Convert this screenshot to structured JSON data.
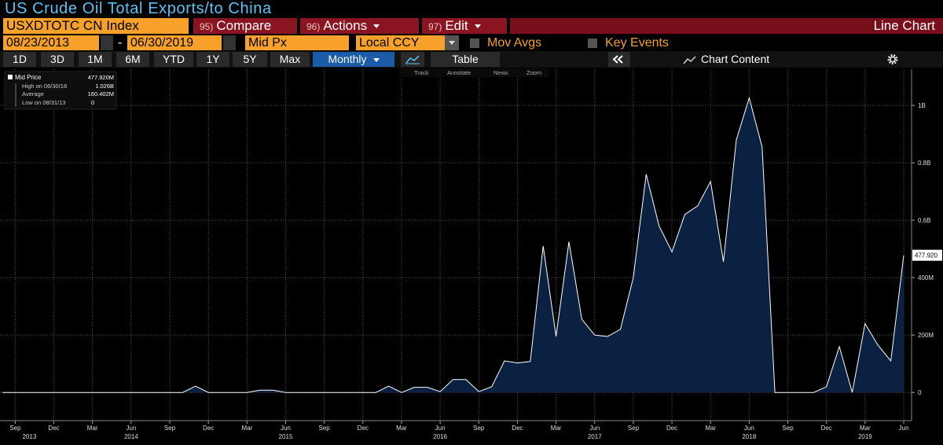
{
  "header": {
    "title": "US Crude Oil Total Exports/to China"
  },
  "toolbar": {
    "ticker": "USXDTOTC CN Index",
    "buttons": [
      {
        "num": "95)",
        "label": "Compare"
      },
      {
        "num": "96)",
        "label": "Actions"
      },
      {
        "num": "97)",
        "label": "Edit"
      }
    ],
    "chart_label": "Line Chart"
  },
  "settings": {
    "start_date": "08/23/2013",
    "date_separator": "-",
    "end_date": "06/30/2019",
    "field": "Mid Px",
    "currency": "Local CCY",
    "toggles": [
      "Mov Avgs",
      "Key Events"
    ]
  },
  "periods": {
    "options": [
      "1D",
      "3D",
      "1M",
      "6M",
      "YTD",
      "1Y",
      "5Y",
      "Max"
    ],
    "frequency": "Monthly",
    "table": "Table",
    "chart_content": "Chart Content"
  },
  "chart_data": {
    "type": "area",
    "series": [
      {
        "name": "Mid Price",
        "color": "#ffffff",
        "fill_color": "#0b2142",
        "values": [
          0,
          0,
          0,
          0,
          0,
          0,
          0,
          0,
          0,
          0,
          0,
          0,
          0,
          0,
          0,
          22,
          0,
          0,
          0,
          0,
          8,
          8,
          0,
          0,
          0,
          0,
          0,
          0,
          0,
          0,
          22,
          0,
          18,
          18,
          3,
          45,
          45,
          3,
          20,
          110,
          103,
          108,
          510,
          195,
          525,
          255,
          200,
          195,
          220,
          400,
          760,
          580,
          490,
          620,
          650,
          735,
          455,
          880,
          1026,
          855,
          0,
          0,
          0,
          0,
          20,
          160,
          0,
          240,
          165,
          110,
          477.92
        ],
        "value_labels": [
          null,
          null,
          null,
          null,
          null,
          null,
          null,
          null,
          null,
          null,
          null,
          null,
          null,
          null,
          null,
          null,
          null,
          null,
          null,
          null,
          null,
          null,
          null,
          null,
          null,
          null,
          null,
          null,
          null,
          null,
          null,
          null,
          null,
          null,
          null,
          null,
          null,
          null,
          null,
          null,
          null,
          null,
          null,
          null,
          null,
          null,
          null,
          null,
          null,
          null,
          null,
          null,
          null,
          null,
          null,
          null,
          null,
          null,
          null,
          null,
          null,
          null,
          null,
          null,
          null,
          null,
          null,
          null,
          null,
          null,
          "477.920"
        ]
      }
    ],
    "categories": [
      null,
      "Sep",
      null,
      null,
      "Dec",
      null,
      null,
      "Mar",
      null,
      null,
      "Jun",
      null,
      null,
      "Sep",
      null,
      null,
      "Dec",
      null,
      null,
      "Mar",
      null,
      null,
      "Jun",
      null,
      null,
      "Sep",
      null,
      null,
      "Dec",
      null,
      null,
      "Mar",
      null,
      null,
      "Jun",
      null,
      null,
      "Sep",
      null,
      null,
      "Dec",
      null,
      null,
      "Mar",
      null,
      null,
      "Jun",
      null,
      null,
      "Sep",
      null,
      null,
      "Dec",
      null,
      null,
      "Mar",
      null,
      null,
      "Jun",
      null,
      null,
      "Sep",
      null,
      null,
      "Dec",
      null,
      null,
      "Mar",
      null,
      null,
      "Jun"
    ],
    "year_labels": [
      null,
      "2013",
      null,
      null,
      null,
      null,
      null,
      null,
      null,
      null,
      "2014",
      null,
      null,
      null,
      null,
      null,
      null,
      null,
      null,
      null,
      null,
      null,
      "2015",
      null,
      null,
      null,
      null,
      null,
      null,
      null,
      null,
      null,
      null,
      null,
      "2016",
      null,
      null,
      null,
      null,
      null,
      null,
      null,
      null,
      null,
      null,
      null,
      "2017",
      null,
      null,
      null,
      null,
      null,
      null,
      null,
      null,
      null,
      null,
      null,
      "2018",
      null,
      null,
      null,
      null,
      null,
      null,
      null,
      null,
      "2019",
      null,
      null,
      null
    ],
    "ylim": [
      -98,
      1126
    ],
    "yticks": [
      0,
      {
        "value": 200,
        "label": "200M"
      },
      {
        "value": 400,
        "label": "400M"
      },
      {
        "value": 600,
        "label": "0.6B"
      },
      {
        "value": 800,
        "label": "0.8B"
      },
      {
        "value": 1000,
        "label": "1B"
      }
    ],
    "grid": true,
    "legend_stats": {
      "current": "477.920M",
      "high_label": "High on 06/30/18",
      "high": "1.026B",
      "average_label": "Average",
      "average": "160.402M",
      "low_label": "Low on 08/31/13",
      "low": "0"
    },
    "tools": [
      "Track",
      "Annotate",
      "News",
      "Zoom"
    ]
  }
}
